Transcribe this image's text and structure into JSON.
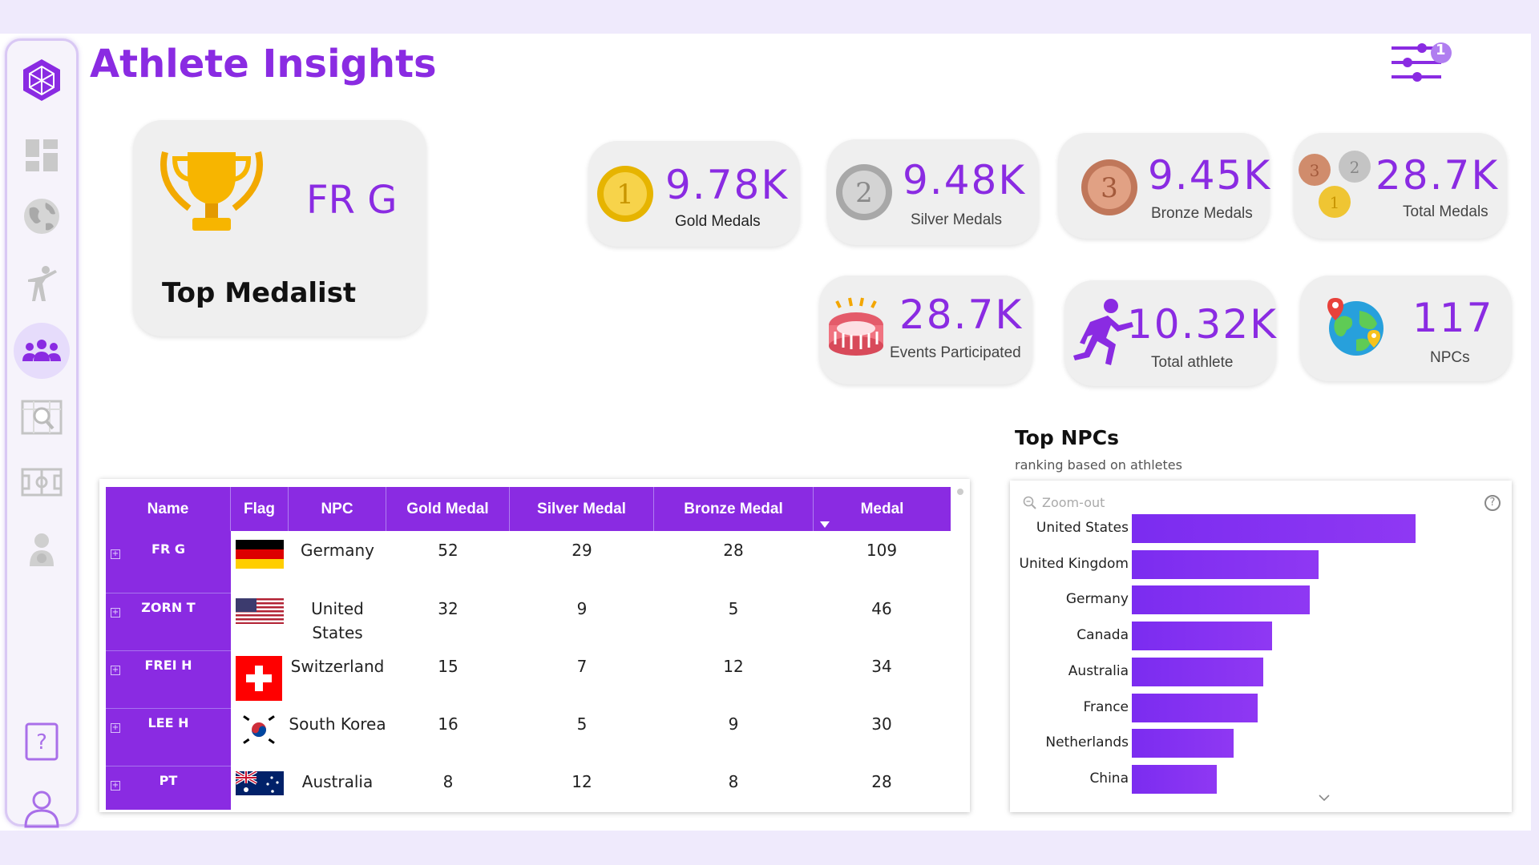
{
  "header": {
    "title": "Athlete Insights",
    "filter_badge": "1"
  },
  "sidebar": {
    "items": [
      {
        "name": "logo-icon"
      },
      {
        "name": "dashboard-icon"
      },
      {
        "name": "globe-icon"
      },
      {
        "name": "athlete-icon"
      },
      {
        "name": "team-icon",
        "active": true
      },
      {
        "name": "search-map-icon"
      },
      {
        "name": "field-icon"
      },
      {
        "name": "medalist-icon"
      },
      {
        "name": "help-icon"
      },
      {
        "name": "user-icon"
      }
    ]
  },
  "top_medalist": {
    "name": "FR G",
    "label": "Top Medalist"
  },
  "kpis": {
    "gold": {
      "value": "9.78K",
      "label": "Gold Medals"
    },
    "silver": {
      "value": "9.48K",
      "label": "Silver Medals"
    },
    "bronze": {
      "value": "9.45K",
      "label": "Bronze Medals"
    },
    "total": {
      "value": "28.7K",
      "label": "Total Medals"
    },
    "events": {
      "value": "28.7K",
      "label": "Events Participated"
    },
    "athletes": {
      "value": "10.32K",
      "label": "Total athlete"
    },
    "npcs": {
      "value": "117",
      "label": "NPCs"
    }
  },
  "table": {
    "headers": [
      "Name",
      "Flag",
      "NPC",
      "Gold Medal",
      "Silver Medal",
      "Bronze Medal",
      "Medal"
    ],
    "rows": [
      {
        "name": "FR G",
        "npc": "Germany",
        "gold": "52",
        "silver": "29",
        "bronze": "28",
        "medal": "109",
        "flag": "germany"
      },
      {
        "name": "ZORN T",
        "npc": "United States",
        "gold": "32",
        "silver": "9",
        "bronze": "5",
        "medal": "46",
        "flag": "usa"
      },
      {
        "name": "FREI H",
        "npc": "Switzerland",
        "gold": "15",
        "silver": "7",
        "bronze": "12",
        "medal": "34",
        "flag": "switzerland"
      },
      {
        "name": "LEE H",
        "npc": "South Korea",
        "gold": "16",
        "silver": "5",
        "bronze": "9",
        "medal": "30",
        "flag": "south-korea"
      },
      {
        "name": "PT",
        "npc": "Australia",
        "gold": "8",
        "silver": "12",
        "bronze": "8",
        "medal": "28",
        "flag": "australia"
      }
    ]
  },
  "chart": {
    "title": "Top NPCs",
    "subtitle": "ranking based on athletes",
    "zoom_label": "Zoom-out",
    "help": "?"
  },
  "chart_data": {
    "type": "bar",
    "orientation": "horizontal",
    "categories": [
      "United States",
      "United Kingdom",
      "Germany",
      "Canada",
      "Australia",
      "France",
      "Netherlands",
      "China"
    ],
    "values": [
      590,
      388,
      370,
      292,
      274,
      262,
      212,
      176
    ],
    "title": "Top NPCs",
    "subtitle": "ranking based on athletes",
    "xlim": [
      0,
      700
    ],
    "grid": false,
    "legend": "none"
  },
  "colors": {
    "accent": "#8a2be2",
    "bar": "#8431f2",
    "background": "#efeafc"
  }
}
